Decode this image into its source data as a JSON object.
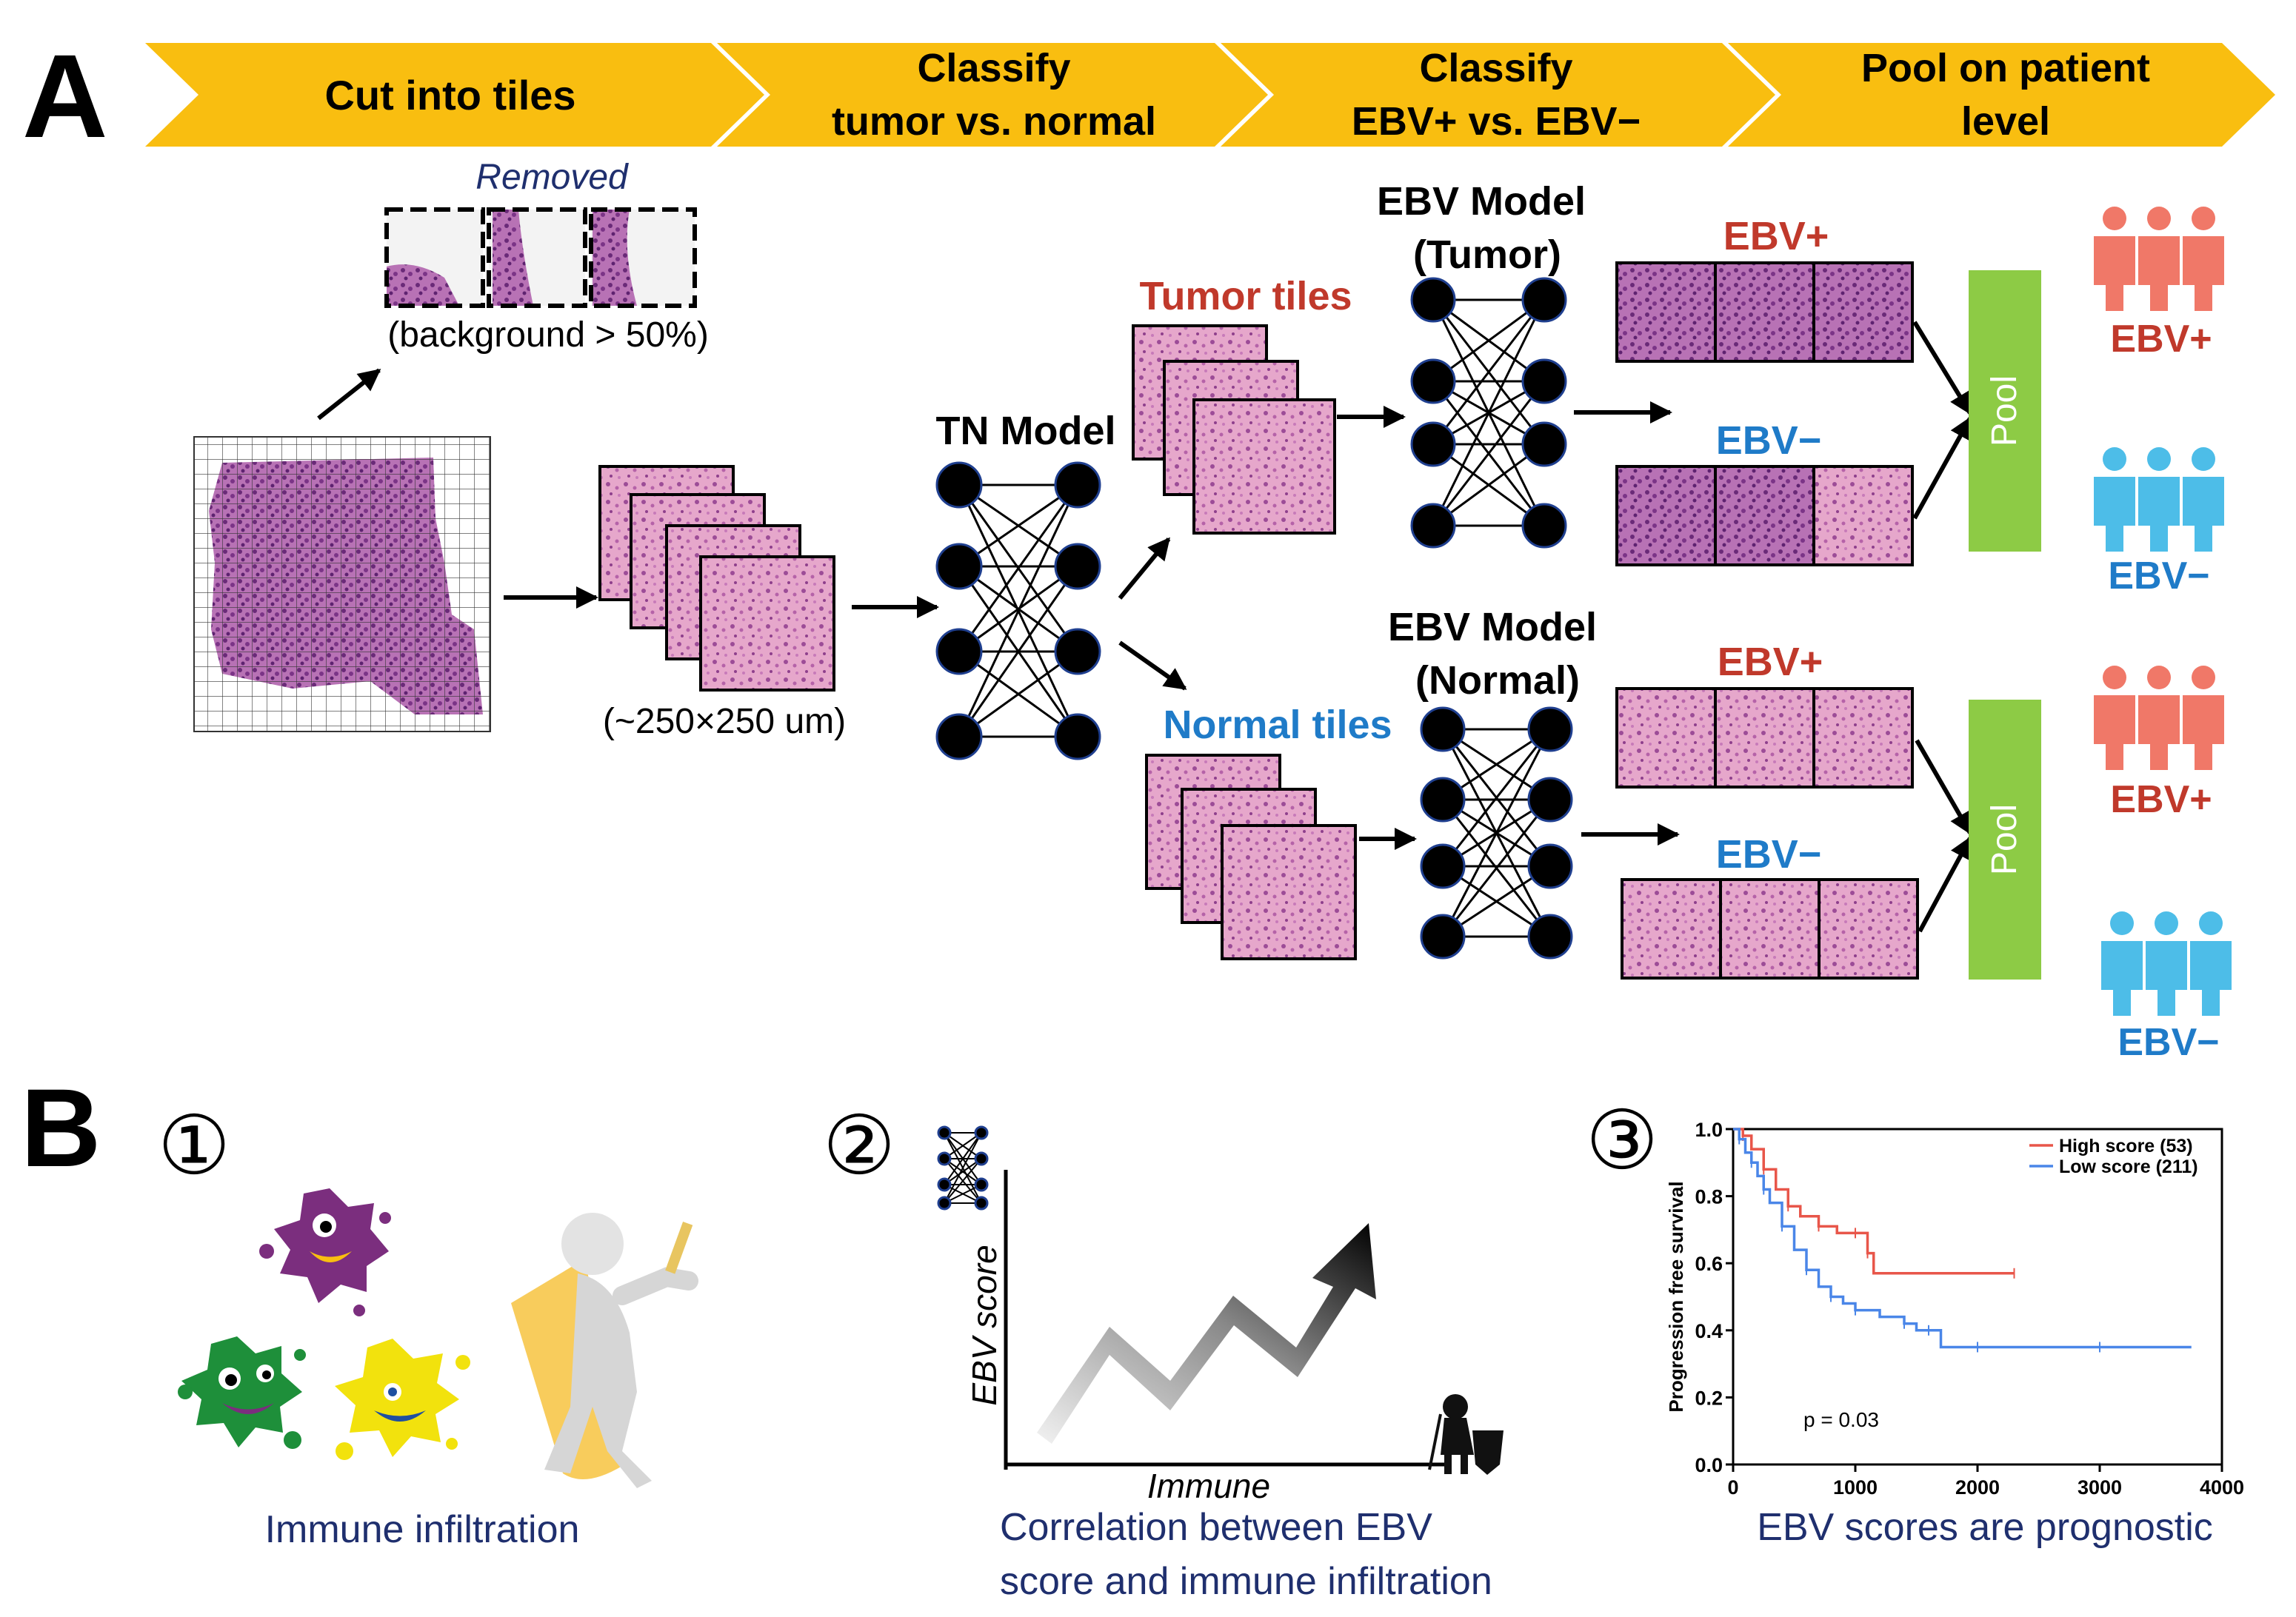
{
  "panel_a": {
    "letter": "A",
    "steps": [
      {
        "lines": [
          "Cut into tiles"
        ]
      },
      {
        "lines": [
          "Classify",
          "tumor vs. normal"
        ]
      },
      {
        "lines": [
          "Classify",
          "EBV+ vs. EBV−"
        ]
      },
      {
        "lines": [
          "Pool on patient",
          "level"
        ]
      }
    ],
    "removed_label": "Removed",
    "removed_note": "(background > 50%)",
    "tile_size_note": "(~250×250 um)",
    "tn_model": "TN Model",
    "tumor_tiles": "Tumor tiles",
    "normal_tiles": "Normal tiles",
    "ebv_model_tumor": [
      "EBV Model",
      "(Tumor)"
    ],
    "ebv_model_normal": [
      "EBV Model",
      "(Normal)"
    ],
    "ebv_pos": "EBV+",
    "ebv_neg": "EBV−",
    "pool": "Pool"
  },
  "panel_b": {
    "letter": "B",
    "item1": {
      "number": "①",
      "caption": "Immune infiltration"
    },
    "item2": {
      "number": "②",
      "caption_lines": [
        "Correlation between EBV",
        "score and immune infiltration"
      ],
      "y_axis": "EBV score",
      "x_axis": "Immune"
    },
    "item3": {
      "number": "③",
      "caption": "EBV scores are prognostic"
    }
  },
  "colors": {
    "banner": "#F9BE10",
    "ebv_pos": "#C0392B",
    "ebv_neg": "#1F7BC8",
    "pool": "#8DCB45",
    "person_pos": "#F07868",
    "person_neg": "#4DBDE8",
    "navy": "#1F2F6E",
    "tissue": "#D98BB5"
  },
  "chart_data": {
    "type": "line",
    "title": "",
    "xlabel": "",
    "ylabel": "Progression free survival",
    "xlim": [
      0,
      4000
    ],
    "ylim": [
      0.0,
      1.0
    ],
    "xticks": [
      0,
      1000,
      2000,
      3000,
      4000
    ],
    "yticks": [
      0.0,
      0.2,
      0.4,
      0.6,
      0.8,
      1.0
    ],
    "annotation": "p = 0.03",
    "legend_position": "top-right",
    "series": [
      {
        "name": "High score (53)",
        "color": "#E8564A",
        "x": [
          0,
          80,
          150,
          250,
          350,
          450,
          550,
          700,
          850,
          1000,
          1050,
          1100,
          1150,
          2300
        ],
        "y": [
          1.0,
          0.98,
          0.94,
          0.88,
          0.82,
          0.77,
          0.74,
          0.71,
          0.69,
          0.69,
          0.69,
          0.63,
          0.57,
          0.57
        ]
      },
      {
        "name": "Low score (211)",
        "color": "#4A86E8",
        "x": [
          0,
          50,
          100,
          150,
          200,
          250,
          300,
          400,
          500,
          600,
          700,
          800,
          900,
          1000,
          1200,
          1400,
          1500,
          1600,
          1700,
          2000,
          2500,
          3000,
          3750
        ],
        "y": [
          1.0,
          0.97,
          0.93,
          0.9,
          0.86,
          0.82,
          0.78,
          0.71,
          0.64,
          0.58,
          0.53,
          0.5,
          0.48,
          0.46,
          0.44,
          0.42,
          0.4,
          0.4,
          0.35,
          0.35,
          0.35,
          0.35,
          0.35
        ]
      }
    ]
  }
}
